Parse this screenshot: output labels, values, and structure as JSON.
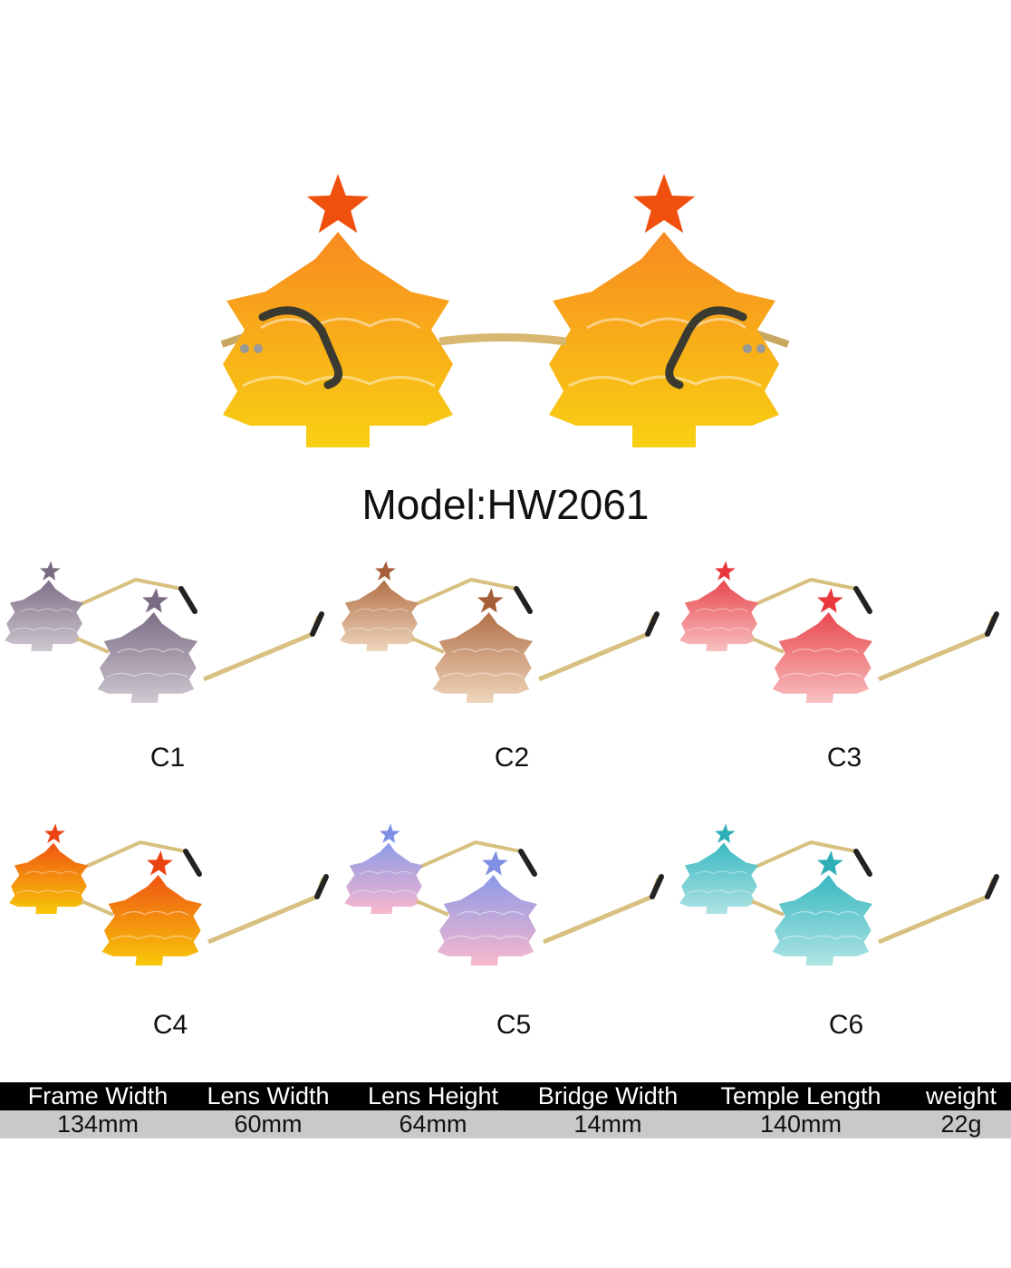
{
  "model_label": "Model:HW2061",
  "main_colors": {
    "star": "#f0500e",
    "top": "#f88a20",
    "bottom": "#f8d012"
  },
  "variants": [
    {
      "label": "C1",
      "star": "#7a6a82",
      "top": "#7d6e86",
      "bottom": "#cfc8d0"
    },
    {
      "label": "C2",
      "star": "#a45e38",
      "top": "#b27048",
      "bottom": "#efd6bc"
    },
    {
      "label": "C3",
      "star": "#e8383e",
      "top": "#e8484e",
      "bottom": "#f8c0c0"
    },
    {
      "label": "C4",
      "star": "#ea4210",
      "top": "#ee5414",
      "bottom": "#f8c808"
    },
    {
      "label": "C5",
      "star": "#7f90e4",
      "top": "#8c9ae8",
      "bottom": "#f8b8cc"
    },
    {
      "label": "C6",
      "star": "#2fb0b6",
      "top": "#38b8c0",
      "bottom": "#b0e4e4"
    }
  ],
  "specs": {
    "headers": [
      "Frame Width",
      "Lens Width",
      "Lens Height",
      "Bridge Width",
      "Temple Length",
      "weight"
    ],
    "values": [
      "134mm",
      "60mm",
      "64mm",
      "14mm",
      "140mm",
      "22g"
    ]
  }
}
